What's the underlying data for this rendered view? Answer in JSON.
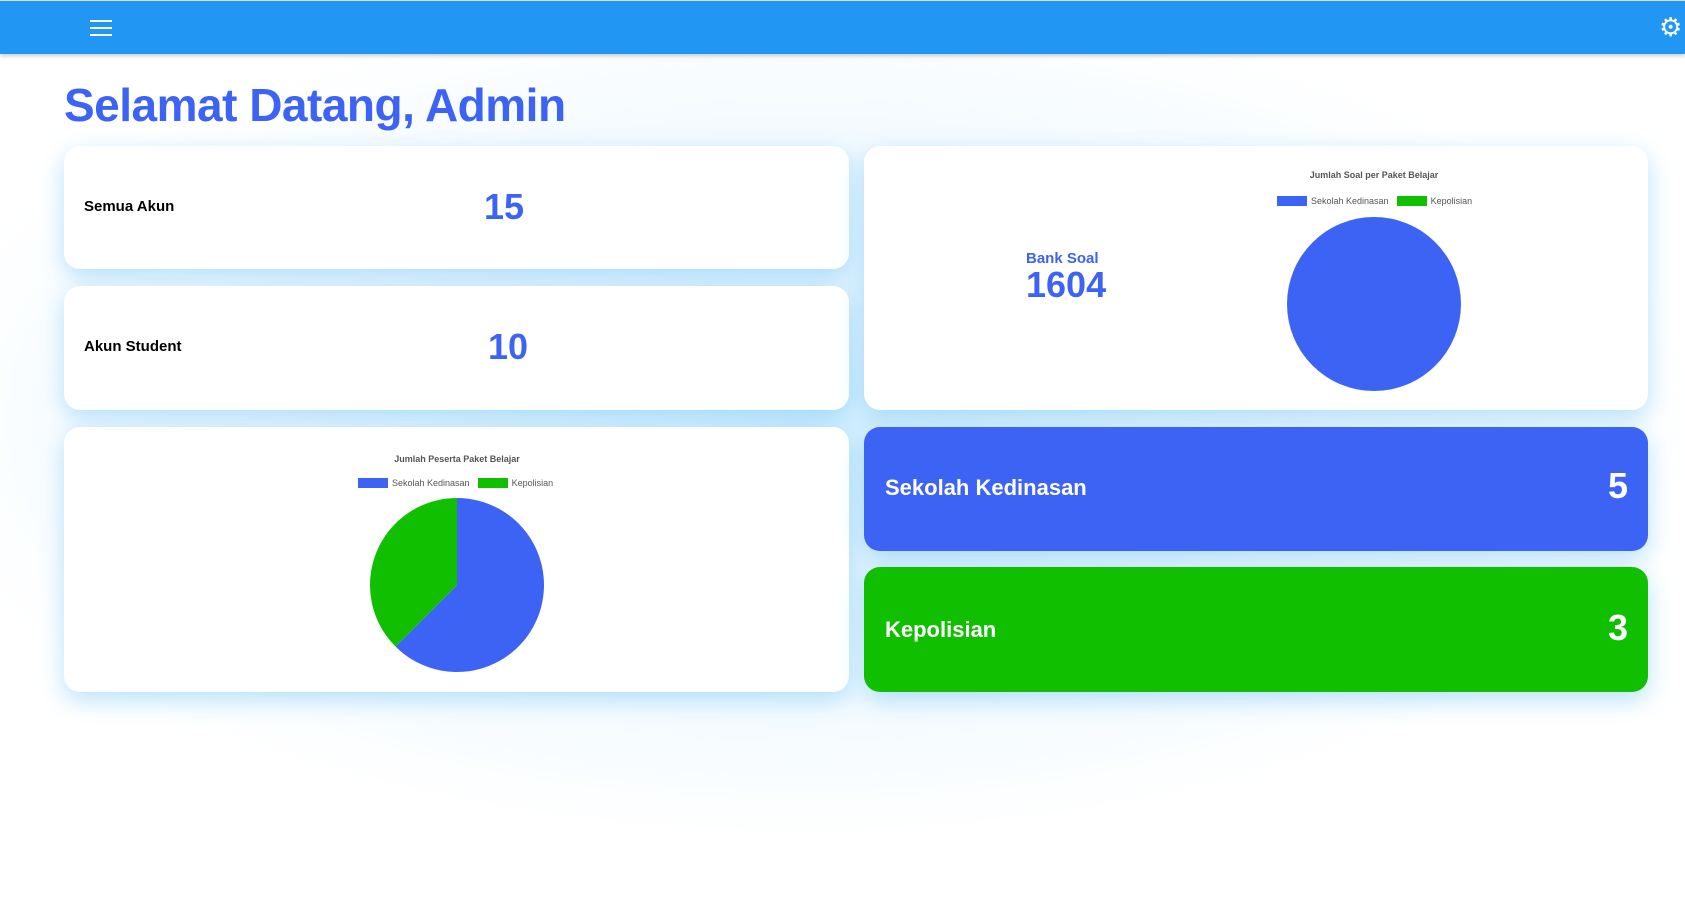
{
  "header": {
    "menu_icon": "hamburger-icon",
    "settings_icon": "gear-icon",
    "color": "#2196f3"
  },
  "title": "Selamat Datang, Admin",
  "stats": {
    "all_accounts": {
      "label": "Semua Akun",
      "value": "15"
    },
    "student_accounts": {
      "label": "Akun Student",
      "value": "10"
    },
    "bank_soal": {
      "label": "Bank Soal",
      "value": "1604"
    },
    "sekolah_kedinasan": {
      "label": "Sekolah Kedinasan",
      "value": "5",
      "color": "#3d63f5"
    },
    "kepolisian": {
      "label": "Kepolisian",
      "value": "3",
      "color": "#10c000"
    }
  },
  "chart_data": [
    {
      "type": "pie",
      "title": "Jumlah Soal per Paket Belajar",
      "categories": [
        "Sekolah Kedinasan",
        "Kepolisian"
      ],
      "values": [
        1604,
        0
      ],
      "colors": [
        "#3d63f5",
        "#10c000"
      ],
      "legend": "top"
    },
    {
      "type": "pie",
      "title": "Jumlah Peserta Paket Belajar",
      "categories": [
        "Sekolah Kedinasan",
        "Kepolisian"
      ],
      "values": [
        5,
        3
      ],
      "colors": [
        "#3d63f5",
        "#10c000"
      ],
      "legend": "top"
    }
  ]
}
